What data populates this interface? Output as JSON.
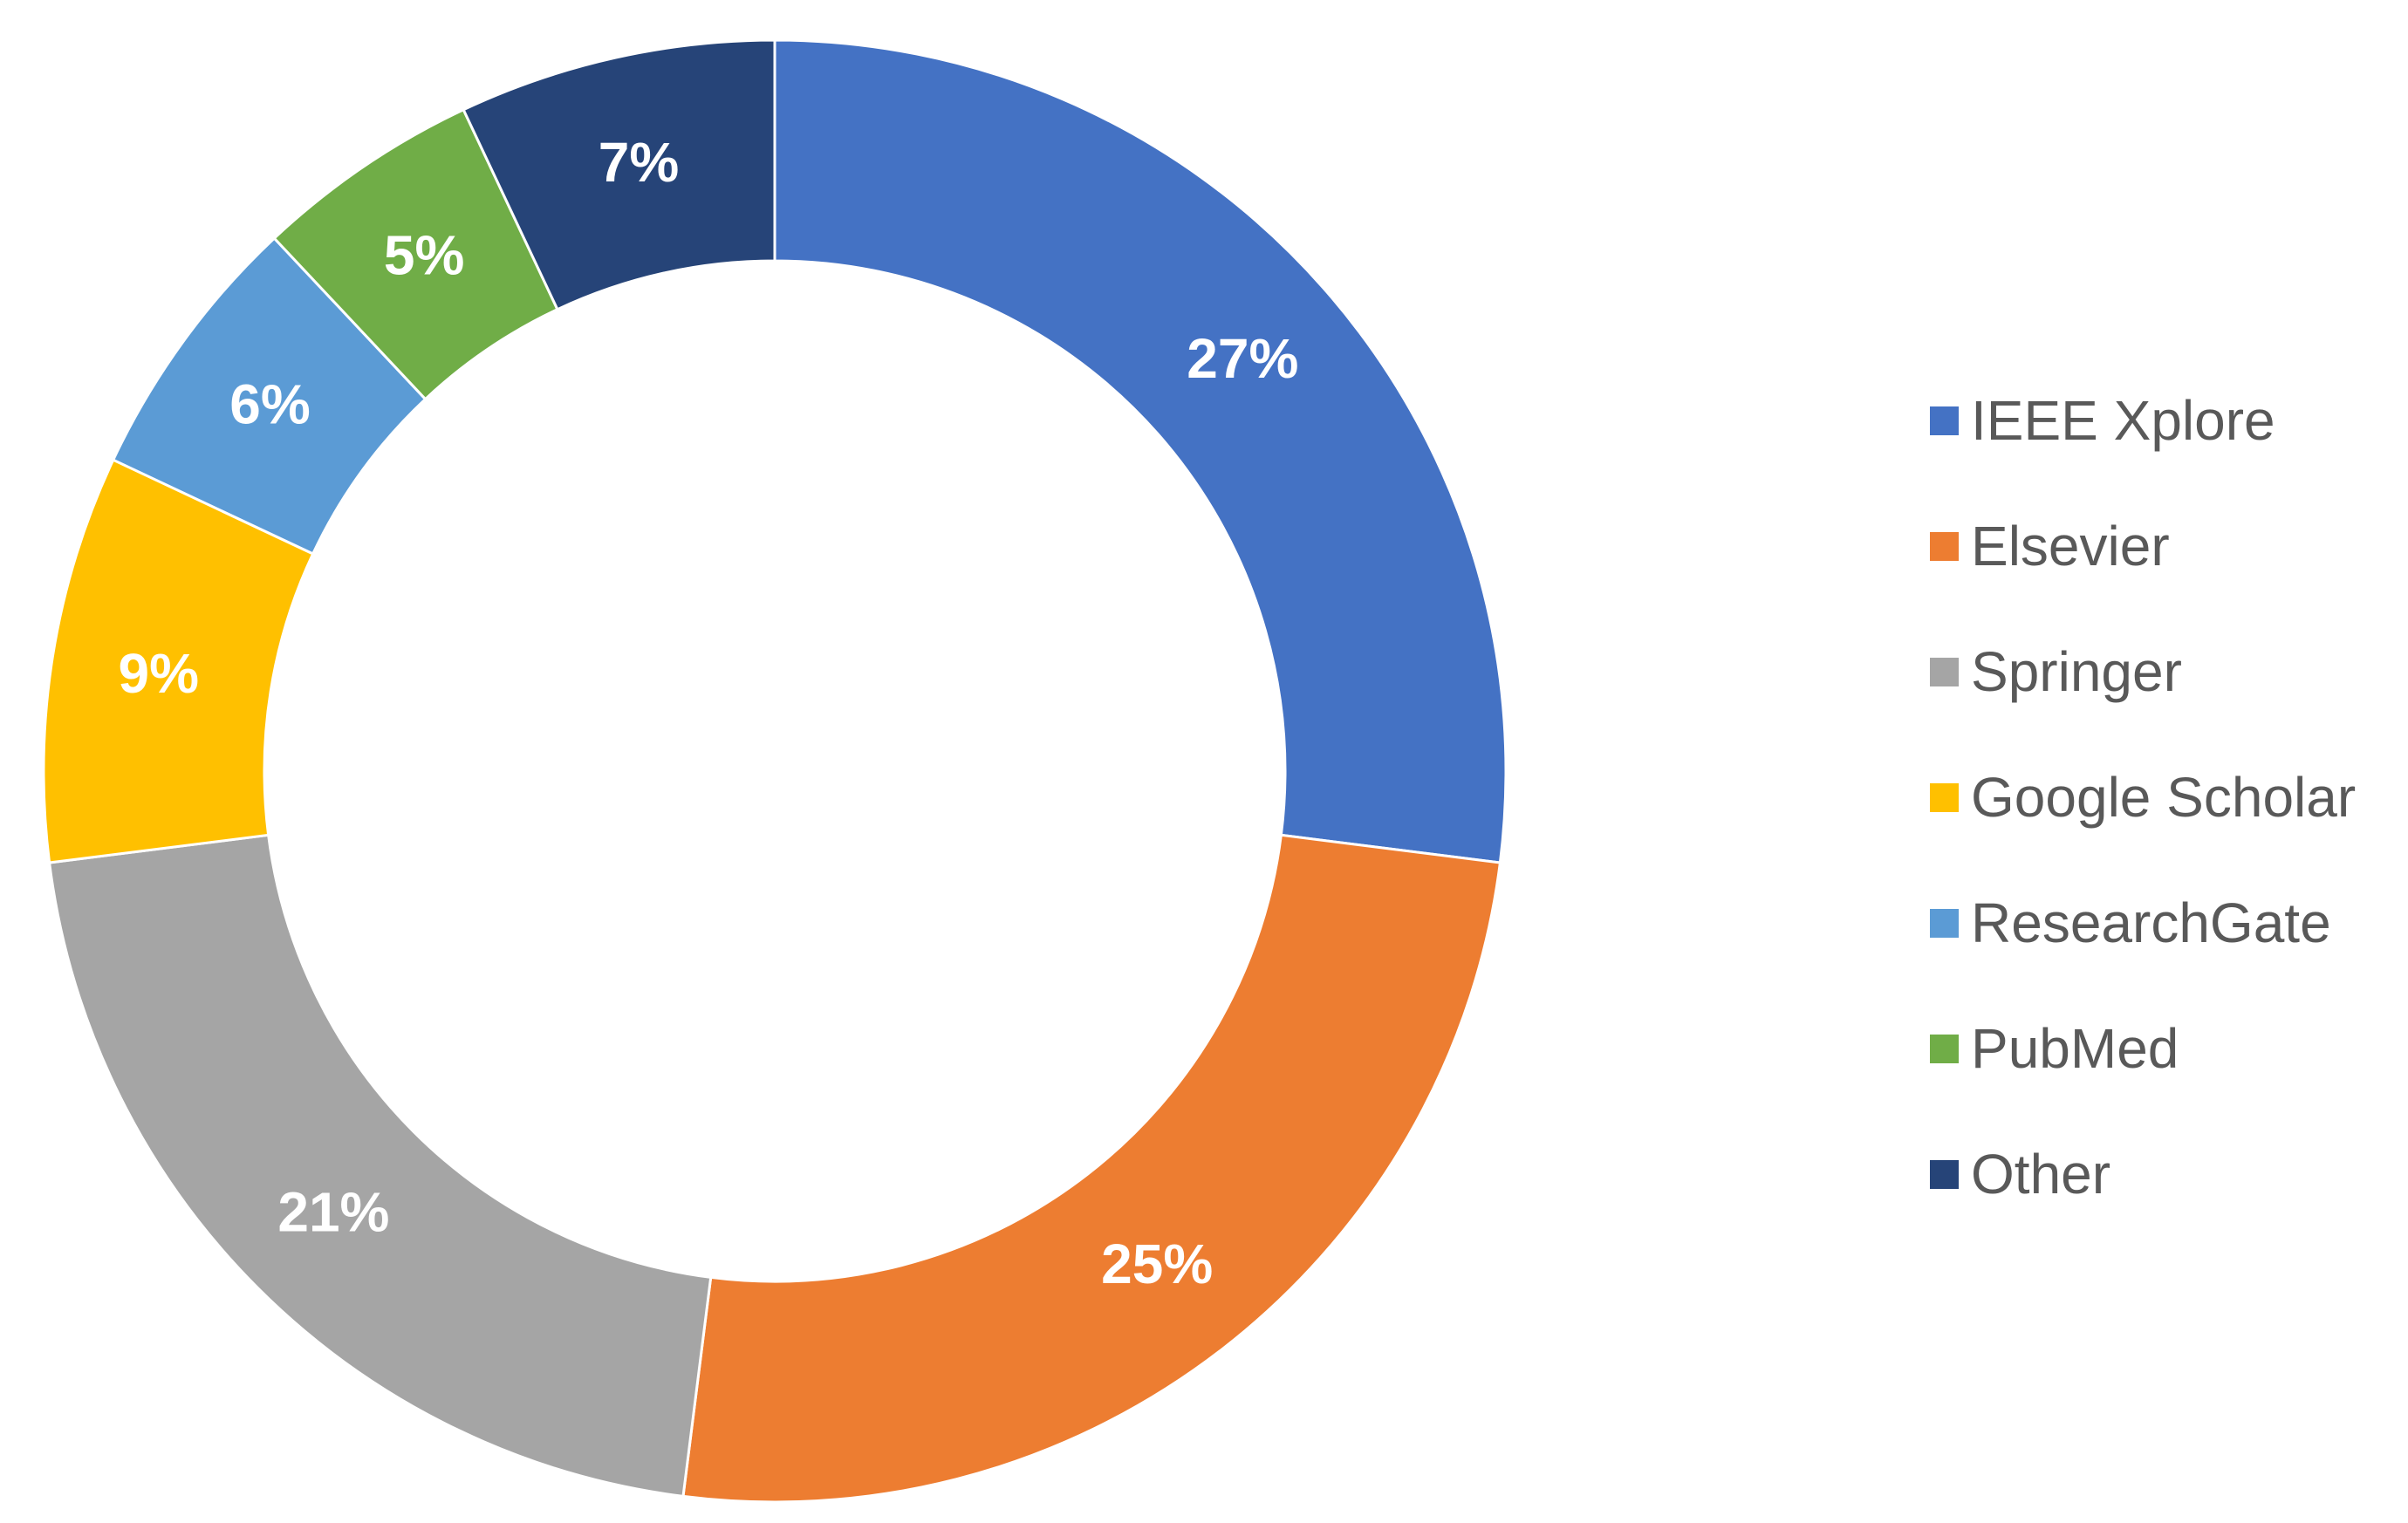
{
  "chart_data": {
    "type": "pie",
    "variant": "donut",
    "title": "",
    "legend_position": "right",
    "slices": [
      {
        "name": "IEEE Xplore",
        "value": 27,
        "label": "27%",
        "color": "#4472C4"
      },
      {
        "name": "Elsevier",
        "value": 25,
        "label": "25%",
        "color": "#ED7D31"
      },
      {
        "name": "Springer",
        "value": 21,
        "label": "21%",
        "color": "#A5A5A5"
      },
      {
        "name": "Google Scholar",
        "value": 9,
        "label": "9%",
        "color": "#FFC000"
      },
      {
        "name": "ResearchGate",
        "value": 6,
        "label": "6%",
        "color": "#5B9BD5"
      },
      {
        "name": "PubMed",
        "value": 5,
        "label": "5%",
        "color": "#70AD47"
      },
      {
        "name": "Other",
        "value": 7,
        "label": "7%",
        "color": "#264478"
      }
    ]
  }
}
